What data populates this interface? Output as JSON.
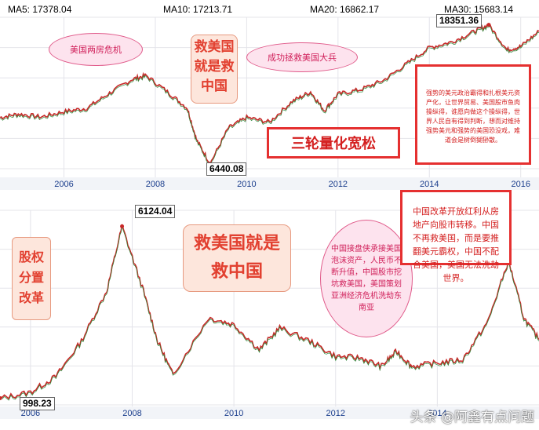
{
  "top_panel": {
    "ma_labels": [
      {
        "text": "MA5: 17378.04",
        "color": "#1d6fd0"
      },
      {
        "text": "MA10: 17213.71",
        "color": "#3bb7d8"
      },
      {
        "text": "MA20: 16862.17",
        "color": "#e0208a"
      },
      {
        "text": "MA30: 15683.14",
        "color": "#7ab82c"
      }
    ],
    "peak_label": "18351.36",
    "low_label": "6440.08",
    "annotations": {
      "crisis_bubble": "美国两房危机",
      "save_us_save_china": "救美国\n就是救\n中国",
      "success_bubble": "成功拯救美国大兵",
      "qe_box": "三轮量化宽松",
      "red_box_text": "强势的美元政治霸得和扎根美元资产化，让世界贸易、美国股市鱼肉操纵得，谁愿向做这个操纵得，世界人民自有得到判断，想而对维持强势美元和强势的美国恐没戏，难道会是树倒猢狲散。"
    },
    "chart_data": {
      "type": "line",
      "title": "",
      "x_ticks": [
        "2006",
        "2008",
        "2010",
        "2012",
        "2014",
        "2016"
      ],
      "series": [
        {
          "values": [
            [
              "2004.6",
              10400
            ],
            [
              "2005.0",
              10700
            ],
            [
              "2005.5",
              10450
            ],
            [
              "2006.0",
              10900
            ],
            [
              "2006.5",
              11200
            ],
            [
              "2007.0",
              12500
            ],
            [
              "2007.5",
              13700
            ],
            [
              "2007.8",
              14000
            ],
            [
              "2008.3",
              12500
            ],
            [
              "2008.7",
              11200
            ],
            [
              "2008.9",
              8500
            ],
            [
              "2009.2",
              6440
            ],
            [
              "2009.6",
              9500
            ],
            [
              "2010.0",
              10400
            ],
            [
              "2010.5",
              10000
            ],
            [
              "2011.0",
              11800
            ],
            [
              "2011.4",
              12600
            ],
            [
              "2011.7",
              11000
            ],
            [
              "2012.0",
              12400
            ],
            [
              "2012.5",
              12800
            ],
            [
              "2013.0",
              13600
            ],
            [
              "2013.5",
              15000
            ],
            [
              "2014.0",
              16400
            ],
            [
              "2014.5",
              16900
            ],
            [
              "2015.0",
              17800
            ],
            [
              "2015.3",
              18351
            ],
            [
              "2015.7",
              16200
            ],
            [
              "2016.0",
              16500
            ],
            [
              "2016.4",
              17800
            ]
          ]
        }
      ],
      "peak": 18351.36,
      "low": 6440.08,
      "ylim": [
        6000,
        19000
      ]
    }
  },
  "bottom_panel": {
    "peak_label": "6124.04",
    "low_label": "998.23",
    "annotations": {
      "reform": "股权\n分置\n改革",
      "save_us_big": "救美国就是\n救中国",
      "pink_bubble": "中国接盘侠承接美国泡沫资产，人民币不断升值，中国股市挖坑救美国，美国策划亚洲经济危机洗劫东南亚",
      "red_box": "中国改革开放红利从房地产向股市转移。中国不再救美国，而是要推翻美元霸权，中国不配合美国，美国无法洗劫世界。"
    },
    "chart_data": {
      "type": "line",
      "title": "",
      "x_ticks": [
        "2006",
        "2008",
        "2010",
        "2012",
        "2014"
      ],
      "series": [
        {
          "values": [
            [
              "2005.4",
              998
            ],
            [
              "2006.0",
              1180
            ],
            [
              "2006.5",
              1650
            ],
            [
              "2007.0",
              2700
            ],
            [
              "2007.5",
              4200
            ],
            [
              "2007.8",
              6124
            ],
            [
              "2008.2",
              4300
            ],
            [
              "2008.5",
              2700
            ],
            [
              "2008.8",
              1700
            ],
            [
              "2009.5",
              3400
            ],
            [
              "2010.0",
              3200
            ],
            [
              "2010.5",
              2450
            ],
            [
              "2010.9",
              3100
            ],
            [
              "2011.5",
              2700
            ],
            [
              "2012.0",
              2250
            ],
            [
              "2012.5",
              2200
            ],
            [
              "2012.9",
              1950
            ],
            [
              "2013.2",
              2400
            ],
            [
              "2013.5",
              1950
            ],
            [
              "2014.0",
              2050
            ],
            [
              "2014.5",
              2150
            ],
            [
              "2015.0",
              3300
            ],
            [
              "2015.4",
              5100
            ],
            [
              "2015.7",
              3400
            ],
            [
              "2016.0",
              2750
            ]
          ]
        }
      ],
      "peak": 6124.04,
      "low": 998.23,
      "ylim": [
        800,
        6600
      ]
    }
  },
  "watermark": "头条 @阿鑫有点问题"
}
